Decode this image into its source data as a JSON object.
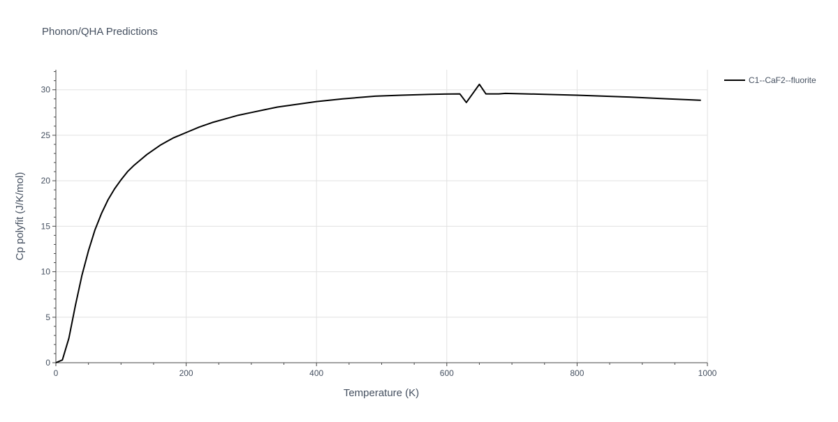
{
  "chart_data": {
    "type": "line",
    "title": "Phonon/QHA Predictions",
    "xlabel": "Temperature (K)",
    "ylabel": "Cp polyfit (J/K/mol)",
    "xlim": [
      0,
      1000
    ],
    "ylim": [
      0,
      32.2
    ],
    "x_ticks": [
      0,
      200,
      400,
      600,
      800,
      1000
    ],
    "y_ticks": [
      0,
      5,
      10,
      15,
      20,
      25,
      30
    ],
    "grid": true,
    "legend_position": "top-right",
    "series": [
      {
        "name": "C1--CaF2--fluorite",
        "color": "#000000",
        "x": [
          0,
          10,
          20,
          30,
          40,
          50,
          60,
          70,
          80,
          90,
          100,
          110,
          120,
          130,
          140,
          150,
          160,
          170,
          180,
          190,
          200,
          220,
          240,
          260,
          280,
          300,
          320,
          340,
          360,
          380,
          400,
          440,
          490,
          530,
          575,
          620,
          630,
          650,
          660,
          680,
          690,
          750,
          800,
          880,
          940,
          990
        ],
        "y": [
          0,
          0.3,
          2.7,
          6.3,
          9.6,
          12.3,
          14.6,
          16.4,
          17.9,
          19.1,
          20.1,
          21.0,
          21.7,
          22.3,
          22.9,
          23.4,
          23.9,
          24.3,
          24.7,
          25.0,
          25.3,
          25.9,
          26.4,
          26.8,
          27.2,
          27.5,
          27.8,
          28.1,
          28.3,
          28.5,
          28.7,
          29.0,
          29.3,
          29.4,
          29.5,
          29.55,
          28.6,
          30.6,
          29.55,
          29.55,
          29.6,
          29.5,
          29.4,
          29.2,
          29.0,
          28.85
        ]
      }
    ]
  }
}
